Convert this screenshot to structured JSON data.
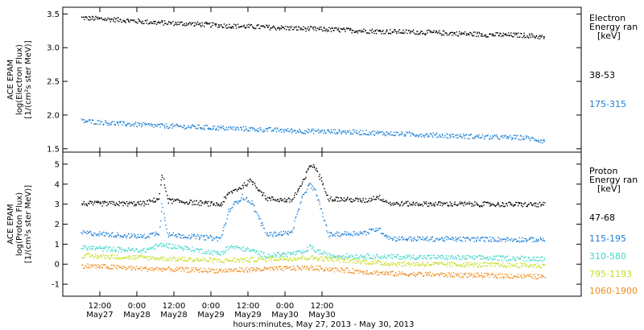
{
  "chart_data": [
    {
      "type": "scatter",
      "panel": "electron",
      "ylabel_lines": [
        "ACE EPAM",
        "log(Electron Flux)",
        "[1/(cm²s ster MeV)]"
      ],
      "ylim": [
        1.45,
        3.6
      ],
      "yticks": [
        "1.5",
        "2.0",
        "2.5",
        "3.0",
        "3.5"
      ],
      "legend_title": [
        "Electron",
        "Energy ran",
        "[keV]"
      ],
      "series": [
        {
          "name": "38-53",
          "color": "#000000",
          "x": [
            0,
            12,
            24,
            36,
            48,
            60,
            72,
            84,
            96,
            108,
            120,
            132,
            144,
            150
          ],
          "values": [
            3.45,
            3.42,
            3.38,
            3.36,
            3.33,
            3.31,
            3.29,
            3.27,
            3.25,
            3.24,
            3.22,
            3.2,
            3.19,
            3.16
          ]
        },
        {
          "name": "175-315",
          "color": "#1a7fd6",
          "x": [
            0,
            12,
            24,
            36,
            48,
            60,
            72,
            84,
            96,
            108,
            120,
            132,
            144,
            150
          ],
          "values": [
            1.92,
            1.88,
            1.85,
            1.83,
            1.81,
            1.79,
            1.77,
            1.76,
            1.74,
            1.72,
            1.7,
            1.68,
            1.67,
            1.62
          ]
        }
      ]
    },
    {
      "type": "scatter",
      "panel": "proton",
      "ylabel_lines": [
        "ACE EPAM",
        "log(Proton Flux)",
        "[1/(cm²s ster MeV)]"
      ],
      "ylim": [
        -1.6,
        5.6
      ],
      "yticks": [
        "-1",
        "0",
        "1",
        "2",
        "3",
        "4",
        "5"
      ],
      "legend_title": [
        "Proton",
        "Energy ran",
        "[keV]"
      ],
      "series": [
        {
          "name": "47-68",
          "color": "#000000",
          "x": [
            0,
            20,
            25,
            26,
            28,
            45,
            48,
            52,
            55,
            60,
            68,
            72,
            74,
            76,
            80,
            92,
            96,
            100,
            150
          ],
          "values": [
            3.05,
            3.05,
            3.3,
            4.5,
            3.2,
            3.0,
            3.6,
            3.9,
            4.2,
            3.3,
            3.2,
            4.2,
            5.0,
            4.8,
            3.3,
            3.2,
            3.4,
            3.05,
            3.0
          ]
        },
        {
          "name": "115-195",
          "color": "#1a7fd6",
          "x": [
            0,
            20,
            25,
            26,
            28,
            45,
            48,
            52,
            55,
            60,
            68,
            72,
            74,
            76,
            80,
            92,
            96,
            100,
            150
          ],
          "values": [
            1.6,
            1.4,
            1.6,
            3.0,
            1.5,
            1.3,
            2.8,
            3.4,
            3.1,
            1.5,
            1.6,
            3.6,
            4.0,
            3.6,
            1.5,
            1.6,
            1.8,
            1.3,
            1.25
          ]
        },
        {
          "name": "310-580",
          "color": "#3dd6c8",
          "x": [
            0,
            20,
            26,
            45,
            48,
            52,
            55,
            60,
            72,
            74,
            76,
            80,
            100,
            150
          ],
          "values": [
            0.85,
            0.7,
            1.0,
            0.55,
            0.9,
            0.8,
            0.7,
            0.45,
            0.6,
            0.9,
            0.7,
            0.45,
            0.4,
            0.3
          ]
        },
        {
          "name": "795-1193",
          "color": "#c8dc1e",
          "x": [
            0,
            20,
            45,
            74,
            100,
            150
          ],
          "values": [
            0.45,
            0.35,
            0.2,
            0.35,
            0.05,
            -0.05
          ]
        },
        {
          "name": "1060-1900",
          "color": "#f08c1e",
          "x": [
            0,
            20,
            45,
            74,
            100,
            150
          ],
          "values": [
            -0.05,
            -0.2,
            -0.3,
            -0.15,
            -0.45,
            -0.6
          ]
        }
      ]
    }
  ],
  "x_axis": {
    "xlim": [
      -6,
      162
    ],
    "ticks": [
      {
        "x": 6,
        "time": "12:00",
        "date": "May27"
      },
      {
        "x": 18,
        "time": "0:00",
        "date": "May28"
      },
      {
        "x": 30,
        "time": "12:00",
        "date": "May28"
      },
      {
        "x": 42,
        "time": "0:00",
        "date": "May29"
      },
      {
        "x": 54,
        "time": "12:00",
        "date": "May29"
      },
      {
        "x": 66,
        "time": "0:00",
        "date": "May30"
      },
      {
        "x": 78,
        "time": "12:00",
        "date": "May30"
      }
    ],
    "xlabel": "hours:minutes, May 27, 2013 - May 30, 2013"
  }
}
